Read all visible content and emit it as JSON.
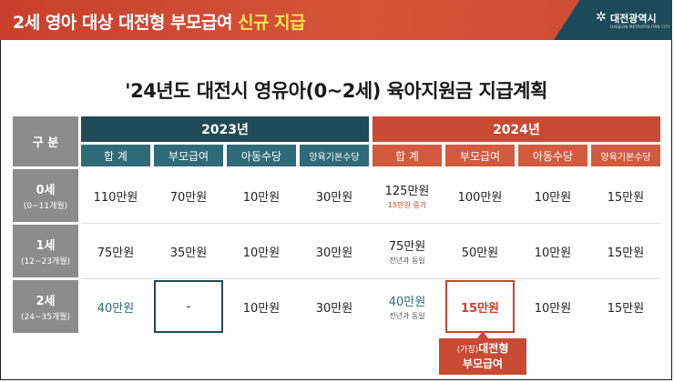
{
  "banner": {
    "title_main": "2세 영아 대상 대전형 부모급여 ",
    "title_highlight": "신규 지급",
    "logo_name": "대전광역시",
    "logo_sub": "DAEJEON METROPOLITAN CITY"
  },
  "main_title": "'24년도 대전시 영유아(0~2세) 육아지원금 지급계획",
  "table": {
    "row_header_label": "구 분",
    "years": [
      {
        "label": "2023년",
        "subheaders": [
          "합 계",
          "부모급여",
          "아동수당",
          "양육기본수당"
        ]
      },
      {
        "label": "2024년",
        "subheaders": [
          "합 계",
          "부모급여",
          "아동수당",
          "양육기본수당"
        ]
      }
    ],
    "rows": [
      {
        "age": "0세",
        "months": "(0~11개월)",
        "y2023": [
          {
            "v": "110만원"
          },
          {
            "v": "70만원"
          },
          {
            "v": "10만원"
          },
          {
            "v": "30만원"
          }
        ],
        "y2024": [
          {
            "v": "125만원",
            "note": "15만원 증가"
          },
          {
            "v": "100만원"
          },
          {
            "v": "10만원"
          },
          {
            "v": "15만원"
          }
        ]
      },
      {
        "age": "1세",
        "months": "(12~23개월)",
        "y2023": [
          {
            "v": "75만원"
          },
          {
            "v": "35만원"
          },
          {
            "v": "10만원"
          },
          {
            "v": "30만원"
          }
        ],
        "y2024": [
          {
            "v": "75만원",
            "note": "전년과 동일"
          },
          {
            "v": "50만원"
          },
          {
            "v": "10만원"
          },
          {
            "v": "15만원"
          }
        ]
      },
      {
        "age": "2세",
        "months": "(24~35개월)",
        "y2023": [
          {
            "v": "40만원"
          },
          {
            "v": "-"
          },
          {
            "v": "10만원"
          },
          {
            "v": "30만원"
          }
        ],
        "y2024": [
          {
            "v": "40만원",
            "note": "전년과 동일"
          },
          {
            "v": "15만원"
          },
          {
            "v": "10만원"
          },
          {
            "v": "15만원"
          }
        ]
      }
    ]
  },
  "callout": {
    "prefix": "(가칭)",
    "line1": "대전형",
    "line2": "부모급여"
  },
  "colors": {
    "banner": "#c94a32",
    "year2023": "#204a57",
    "year2024": "#c94a32",
    "highlight": "#ffe34d"
  }
}
